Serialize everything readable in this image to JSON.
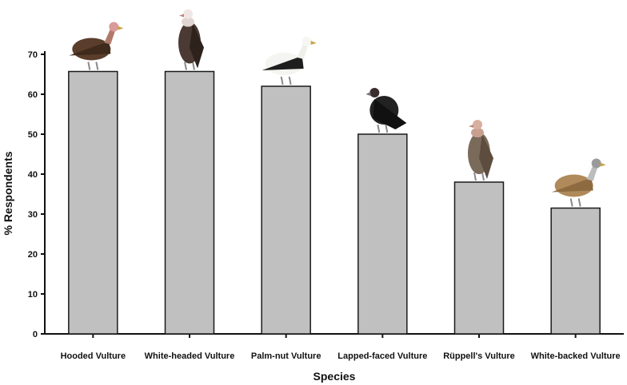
{
  "chart_data": {
    "type": "bar",
    "title": "",
    "xlabel": "Species",
    "ylabel": "% Respondents",
    "categories": [
      "Hooded Vulture",
      "White-headed Vulture",
      "Palm-nut Vulture",
      "Lapped-faced Vulture",
      "Rüppell's Vulture",
      "White-backed Vulture"
    ],
    "values": [
      65.7,
      65.7,
      62,
      50,
      38,
      31.5
    ],
    "ylim": [
      0,
      70
    ],
    "yticks": [
      "0",
      "10",
      "20",
      "30",
      "40",
      "50",
      "60",
      "70"
    ],
    "grid": false,
    "bar_color": "#c0c0c0",
    "bar_edge_color": "#1a1a1a",
    "bird_icons": [
      "hooded-vulture-icon",
      "white-headed-vulture-icon",
      "palm-nut-vulture-icon",
      "lapped-faced-vulture-icon",
      "ruppells-vulture-icon",
      "white-backed-vulture-icon"
    ]
  }
}
